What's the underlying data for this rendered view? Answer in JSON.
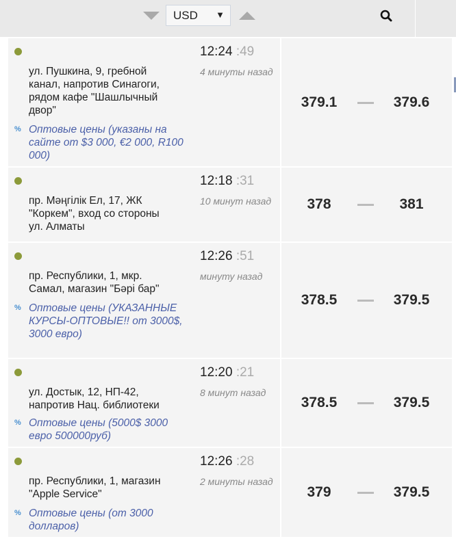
{
  "header": {
    "currency": "USD",
    "sort_down_icon": "triangle-down-icon",
    "sort_up_icon": "triangle-up-icon",
    "search_icon": "search-icon"
  },
  "colors": {
    "online_dot": "#8c9a3a",
    "note": "#4a5fa8",
    "percent": "#4a90d0"
  },
  "rows": [
    {
      "address": "ул. Пушкина, 9, гребной канал, напротив Синагоги, рядом кафе \"Шашлычный двор\"",
      "note": "Оптовые цены (указаны на сайте от $3 000, €2 000, R100 000)",
      "time": "12:24",
      "seconds": ":49",
      "ago": "4 минуты назад",
      "buy": "379.1",
      "sell": "379.6"
    },
    {
      "address": "пр. Мәңгілік Ел, 17, ЖК \"Коркем\", вход со стороны ул. Алматы",
      "note": "",
      "time": "12:18",
      "seconds": ":31",
      "ago": "10 минут назад",
      "buy": "378",
      "sell": "381"
    },
    {
      "address": "пр. Республики, 1, мкр. Самал, магазин \"Бәрі бар\"",
      "note": "Оптовые цены (УКАЗАННЫЕ КУРСЫ-ОПТОВЫЕ!! от 3000$, 3000 евро)",
      "time": "12:26",
      "seconds": ":51",
      "ago": "минуту назад",
      "buy": "378.5",
      "sell": "379.5"
    },
    {
      "address": "ул. Достык, 12, НП-42, напротив Нац. библиотеки",
      "note": "Оптовые цены (5000$ 3000 евро 500000руб)",
      "time": "12:20",
      "seconds": ":21",
      "ago": "8 минут назад",
      "buy": "378.5",
      "sell": "379.5"
    },
    {
      "address": "пр. Республики, 1, магазин \"Apple Service\"",
      "note": "Оптовые цены (от 3000 долларов)",
      "time": "12:26",
      "seconds": ":28",
      "ago": "2 минуты назад",
      "buy": "379",
      "sell": "379.5"
    }
  ]
}
